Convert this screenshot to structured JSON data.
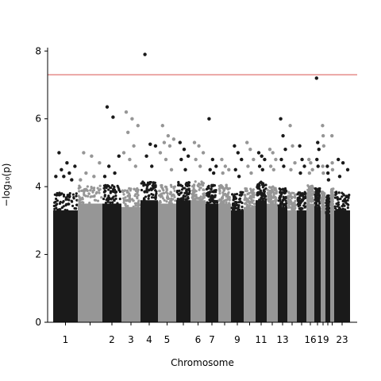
{
  "chart_data": {
    "type": "scatter",
    "subtype": "manhattan",
    "title": "",
    "xlabel": "Chromosome",
    "ylabel": "−log₁₀(p)",
    "ylim": [
      0,
      8.1
    ],
    "yticks": [
      0,
      2,
      4,
      6,
      8
    ],
    "grid": false,
    "legend": "none",
    "colors": {
      "odd": "#1a1a1a",
      "even": "#969696",
      "threshold": "#d9534f"
    },
    "significance_threshold": 7.3,
    "chromosomes": [
      {
        "chr": 1,
        "label": "1",
        "baseline_max": 3.3,
        "top_points": [
          5.0,
          4.7,
          4.6,
          4.5,
          4.4,
          4.3,
          4.3,
          4.2
        ]
      },
      {
        "chr": 2,
        "label": "",
        "baseline_max": 3.5,
        "top_points": [
          5.0,
          4.9,
          4.7,
          4.4,
          4.3,
          4.2
        ]
      },
      {
        "chr": 3,
        "label": "2",
        "baseline_max": 3.5,
        "top_points": [
          6.35,
          6.05,
          4.9,
          4.6,
          4.4,
          4.3
        ]
      },
      {
        "chr": 4,
        "label": "3",
        "baseline_max": 3.4,
        "top_points": [
          6.2,
          6.0,
          5.8,
          5.6,
          5.2,
          5.0,
          4.8,
          4.6
        ]
      },
      {
        "chr": 5,
        "label": "4",
        "baseline_max": 3.6,
        "top_points": [
          7.9,
          5.25,
          5.2,
          4.9,
          4.6
        ]
      },
      {
        "chr": 6,
        "label": "5",
        "baseline_max": 3.5,
        "top_points": [
          5.8,
          5.5,
          5.4,
          5.3,
          5.2,
          5.0,
          4.8,
          4.5
        ]
      },
      {
        "chr": 7,
        "label": "",
        "baseline_max": 3.6,
        "top_points": [
          5.3,
          5.1,
          4.9,
          4.8,
          4.5
        ]
      },
      {
        "chr": 8,
        "label": "6",
        "baseline_max": 3.6,
        "top_points": [
          5.3,
          5.2,
          5.0,
          4.8,
          4.6
        ]
      },
      {
        "chr": 9,
        "label": "7",
        "baseline_max": 3.5,
        "top_points": [
          6.0,
          4.8,
          4.6,
          4.5,
          4.4
        ]
      },
      {
        "chr": 10,
        "label": "",
        "baseline_max": 3.5,
        "top_points": [
          4.8,
          4.6,
          4.5,
          4.4
        ]
      },
      {
        "chr": 11,
        "label": "9",
        "baseline_max": 3.3,
        "top_points": [
          5.2,
          5.0,
          4.8,
          4.5,
          4.3
        ]
      },
      {
        "chr": 12,
        "label": "",
        "baseline_max": 3.4,
        "top_points": [
          5.3,
          5.1,
          4.8,
          4.6,
          4.4
        ]
      },
      {
        "chr": 13,
        "label": "11",
        "baseline_max": 3.6,
        "top_points": [
          5.0,
          4.9,
          4.8,
          4.6,
          4.5
        ]
      },
      {
        "chr": 14,
        "label": "",
        "baseline_max": 3.5,
        "top_points": [
          5.1,
          5.0,
          4.8,
          4.6,
          4.5
        ]
      },
      {
        "chr": 15,
        "label": "13",
        "baseline_max": 3.4,
        "top_points": [
          6.0,
          5.5,
          5.1,
          4.8,
          4.6
        ]
      },
      {
        "chr": 16,
        "label": "",
        "baseline_max": 3.3,
        "top_points": [
          5.8,
          5.2,
          4.7,
          4.5
        ]
      },
      {
        "chr": 17,
        "label": "",
        "baseline_max": 3.3,
        "top_points": [
          5.2,
          4.8,
          4.6,
          4.4
        ]
      },
      {
        "chr": 18,
        "label": "16",
        "baseline_max": 3.5,
        "top_points": [
          4.8,
          4.7,
          4.5,
          4.4
        ]
      },
      {
        "chr": 19,
        "label": "",
        "baseline_max": 3.4,
        "top_points": [
          7.2,
          5.3,
          5.1,
          4.8,
          4.6
        ]
      },
      {
        "chr": 20,
        "label": "19",
        "baseline_max": 3.3,
        "top_points": [
          5.8,
          5.5,
          5.2,
          4.6,
          4.4
        ]
      },
      {
        "chr": 21,
        "label": "",
        "baseline_max": 3.2,
        "top_points": [
          4.6,
          4.4,
          4.2
        ]
      },
      {
        "chr": 22,
        "label": "",
        "baseline_max": 3.4,
        "top_points": [
          5.5,
          4.7,
          4.5
        ]
      },
      {
        "chr": 23,
        "label": "23",
        "baseline_max": 3.3,
        "top_points": [
          4.8,
          4.7,
          4.5,
          4.3
        ]
      }
    ]
  }
}
